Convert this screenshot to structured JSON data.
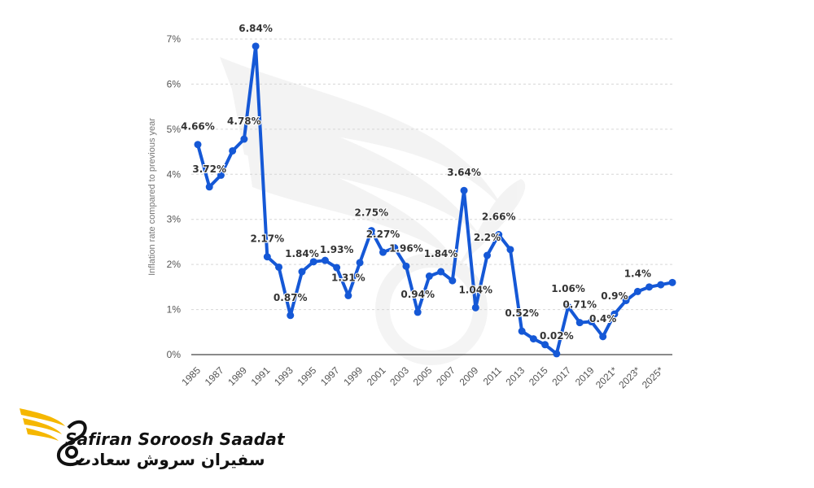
{
  "chart_data": {
    "type": "line",
    "ylabel": "Inflation rate compared to previous year",
    "xlabel": "",
    "y_unit": "%",
    "ylim": [
      0,
      7
    ],
    "y_ticks": [
      "0%",
      "1%",
      "2%",
      "3%",
      "4%",
      "5%",
      "6%",
      "7%"
    ],
    "grid": true,
    "x_tick_labels": [
      "1985",
      "1987",
      "1989",
      "1991",
      "1993",
      "1995",
      "1997",
      "1999",
      "2001",
      "2003",
      "2005",
      "2007",
      "2009",
      "2011",
      "2013",
      "2015",
      "2017",
      "2019",
      "2021*",
      "2023*",
      "2025*"
    ],
    "series": [
      {
        "color": "#1558d6",
        "x": [
          1985,
          1986,
          1987,
          1988,
          1989,
          1990,
          1991,
          1992,
          1993,
          1994,
          1995,
          1996,
          1997,
          1998,
          1999,
          2000,
          2001,
          2002,
          2003,
          2004,
          2005,
          2006,
          2007,
          2008,
          2009,
          2010,
          2011,
          2012,
          2013,
          2014,
          2015,
          2016,
          2017,
          2018,
          2019,
          2020,
          2021,
          2022,
          2023,
          2024,
          2025,
          2026
        ],
        "values": [
          4.66,
          3.72,
          3.98,
          4.52,
          4.78,
          6.84,
          2.17,
          1.94,
          0.87,
          1.84,
          2.06,
          2.09,
          1.93,
          1.31,
          2.04,
          2.75,
          2.27,
          2.37,
          1.96,
          0.94,
          1.74,
          1.84,
          1.64,
          3.64,
          1.04,
          2.2,
          2.66,
          2.33,
          0.52,
          0.35,
          0.22,
          0.02,
          1.06,
          0.71,
          0.73,
          0.4,
          0.9,
          1.2,
          1.4,
          1.5,
          1.55,
          1.6
        ]
      }
    ],
    "data_labels": [
      {
        "text": "4.66%",
        "x": 1985,
        "y": 4.66
      },
      {
        "text": "3.72%",
        "x": 1986,
        "y": 3.72
      },
      {
        "text": "4.78%",
        "x": 1989,
        "y": 4.78
      },
      {
        "text": "6.84%",
        "x": 1990,
        "y": 6.84
      },
      {
        "text": "2.17%",
        "x": 1991,
        "y": 2.17
      },
      {
        "text": "0.87%",
        "x": 1993,
        "y": 0.87
      },
      {
        "text": "1.84%",
        "x": 1994,
        "y": 1.84
      },
      {
        "text": "1.93%",
        "x": 1997,
        "y": 1.93
      },
      {
        "text": "1.31%",
        "x": 1998,
        "y": 1.31
      },
      {
        "text": "2.75%",
        "x": 2000,
        "y": 2.75
      },
      {
        "text": "2.27%",
        "x": 2001,
        "y": 2.27
      },
      {
        "text": "1.96%",
        "x": 2003,
        "y": 1.96
      },
      {
        "text": "0.94%",
        "x": 2004,
        "y": 0.94
      },
      {
        "text": "1.84%",
        "x": 2006,
        "y": 1.84
      },
      {
        "text": "3.64%",
        "x": 2008,
        "y": 3.64
      },
      {
        "text": "1.04%",
        "x": 2009,
        "y": 1.04
      },
      {
        "text": "2.2%",
        "x": 2010,
        "y": 2.2
      },
      {
        "text": "2.66%",
        "x": 2011,
        "y": 2.66
      },
      {
        "text": "0.52%",
        "x": 2013,
        "y": 0.52
      },
      {
        "text": "0.02%",
        "x": 2016,
        "y": 0.02
      },
      {
        "text": "1.06%",
        "x": 2017,
        "y": 1.06
      },
      {
        "text": "0.71%",
        "x": 2018,
        "y": 0.71
      },
      {
        "text": "0.4%",
        "x": 2020,
        "y": 0.4
      },
      {
        "text": "0.9%",
        "x": 2021,
        "y": 0.9
      },
      {
        "text": "1.4%",
        "x": 2023,
        "y": 1.4
      }
    ]
  },
  "branding": {
    "name_en": "Safiran Soroosh Saadat",
    "name_fa": "سفیران سروش سعادت",
    "accent_color": "#f5b700",
    "logo_icon": "phoenix-wing-logo"
  }
}
